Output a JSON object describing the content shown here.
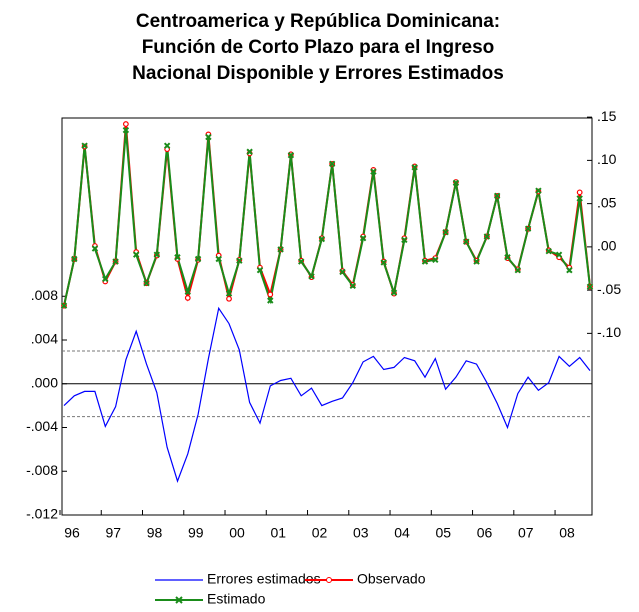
{
  "chart_data": {
    "type": "line",
    "title": [
      "Centroamerica y República Dominicana:",
      "Función de Corto Plazo para el Ingreso",
      "Nacional Disponible y Errores Estimados"
    ],
    "categories": [
      "96",
      null,
      null,
      null,
      "97",
      null,
      null,
      null,
      "98",
      null,
      null,
      null,
      "99",
      null,
      null,
      null,
      "00",
      null,
      null,
      null,
      "01",
      null,
      null,
      null,
      "02",
      null,
      null,
      null,
      "03",
      null,
      null,
      null,
      "04",
      null,
      null,
      null,
      "05",
      null,
      null,
      null,
      "06",
      null,
      null,
      null,
      "07",
      null,
      null,
      null,
      "08",
      null,
      null,
      null
    ],
    "series": [
      {
        "name": "Errores estimados",
        "color": "#0000ff",
        "marker": "none",
        "values": [
          -0.002,
          -0.0011,
          -0.0007,
          -0.0007,
          -0.0039,
          -0.0021,
          0.0022,
          0.0048,
          0.0018,
          -0.0008,
          -0.0058,
          -0.0089,
          -0.0064,
          -0.0028,
          0.0023,
          0.0069,
          0.0055,
          0.0031,
          -0.0017,
          -0.0036,
          -0.0002,
          0.0003,
          0.0005,
          -0.0011,
          -0.0004,
          -0.002,
          -0.0016,
          -0.0013,
          0.0001,
          0.002,
          0.0025,
          0.0013,
          0.0015,
          0.0024,
          0.0021,
          0.0006,
          0.0023,
          -0.0005,
          0.0006,
          0.0021,
          0.0018,
          0.0001,
          -0.0018,
          -0.004,
          -0.0009,
          0.0006,
          -0.0006,
          0.0001,
          0.0025,
          0.0016,
          0.0024,
          0.0012
        ]
      },
      {
        "name": "Observado",
        "color": "#ff0000",
        "marker": "circle",
        "axis": "y2",
        "values": [
          -0.068,
          -0.014,
          0.116,
          0.001,
          -0.04,
          -0.017,
          0.142,
          -0.006,
          -0.042,
          -0.01,
          0.113,
          -0.014,
          -0.059,
          -0.015,
          0.13,
          -0.01,
          -0.06,
          -0.015,
          0.108,
          -0.024,
          -0.055,
          -0.003,
          0.107,
          -0.016,
          -0.035,
          0.01,
          0.096,
          -0.028,
          -0.044,
          0.012,
          0.089,
          -0.017,
          -0.054,
          0.01,
          0.093,
          -0.016,
          -0.013,
          0.017,
          0.075,
          0.006,
          -0.016,
          0.012,
          0.059,
          -0.013,
          -0.026,
          0.021,
          0.064,
          -0.004,
          -0.012,
          -0.024,
          0.063,
          -0.046
        ]
      },
      {
        "name": "Estimado",
        "color": "#1a8c1a",
        "marker": "x",
        "axis": "y2",
        "values": [
          -0.068,
          -0.014,
          0.117,
          -0.002,
          -0.037,
          -0.017,
          0.135,
          -0.009,
          -0.042,
          -0.009,
          0.117,
          -0.012,
          -0.052,
          -0.014,
          0.127,
          -0.014,
          -0.054,
          -0.016,
          0.11,
          -0.027,
          -0.062,
          -0.003,
          0.106,
          -0.017,
          -0.034,
          0.009,
          0.096,
          -0.029,
          -0.045,
          0.01,
          0.087,
          -0.018,
          -0.053,
          0.008,
          0.092,
          -0.017,
          -0.015,
          0.017,
          0.074,
          0.006,
          -0.017,
          0.012,
          0.059,
          -0.012,
          -0.027,
          0.021,
          0.065,
          -0.005,
          -0.009,
          -0.027,
          0.056,
          -0.046
        ]
      }
    ],
    "ylim": [
      -0.012,
      0.0243
    ],
    "yticks": [
      {
        "value": -0.012,
        "label": "-.012"
      },
      {
        "value": -0.008,
        "label": "-.008"
      },
      {
        "value": -0.004,
        "label": "-.004"
      },
      {
        "value": 0,
        "label": ".000"
      },
      {
        "value": 0.004,
        "label": ".004"
      },
      {
        "value": 0.008,
        "label": ".008"
      }
    ],
    "y2lim": [
      -0.31,
      0.149
    ],
    "y2ticks": [
      {
        "value": -0.1,
        "label": "-.10"
      },
      {
        "value": -0.05,
        "label": "-.05"
      },
      {
        "value": 0,
        "label": ".00"
      },
      {
        "value": 0.05,
        "label": ".05"
      },
      {
        "value": 0.1,
        "label": ".10"
      },
      {
        "value": 0.15,
        "label": ".15"
      }
    ],
    "ref_lines": [
      {
        "value": 0,
        "style": "solid"
      },
      {
        "value": 0.003,
        "style": "dashed"
      },
      {
        "value": -0.003,
        "style": "dashed"
      }
    ],
    "legend": "bottom"
  }
}
